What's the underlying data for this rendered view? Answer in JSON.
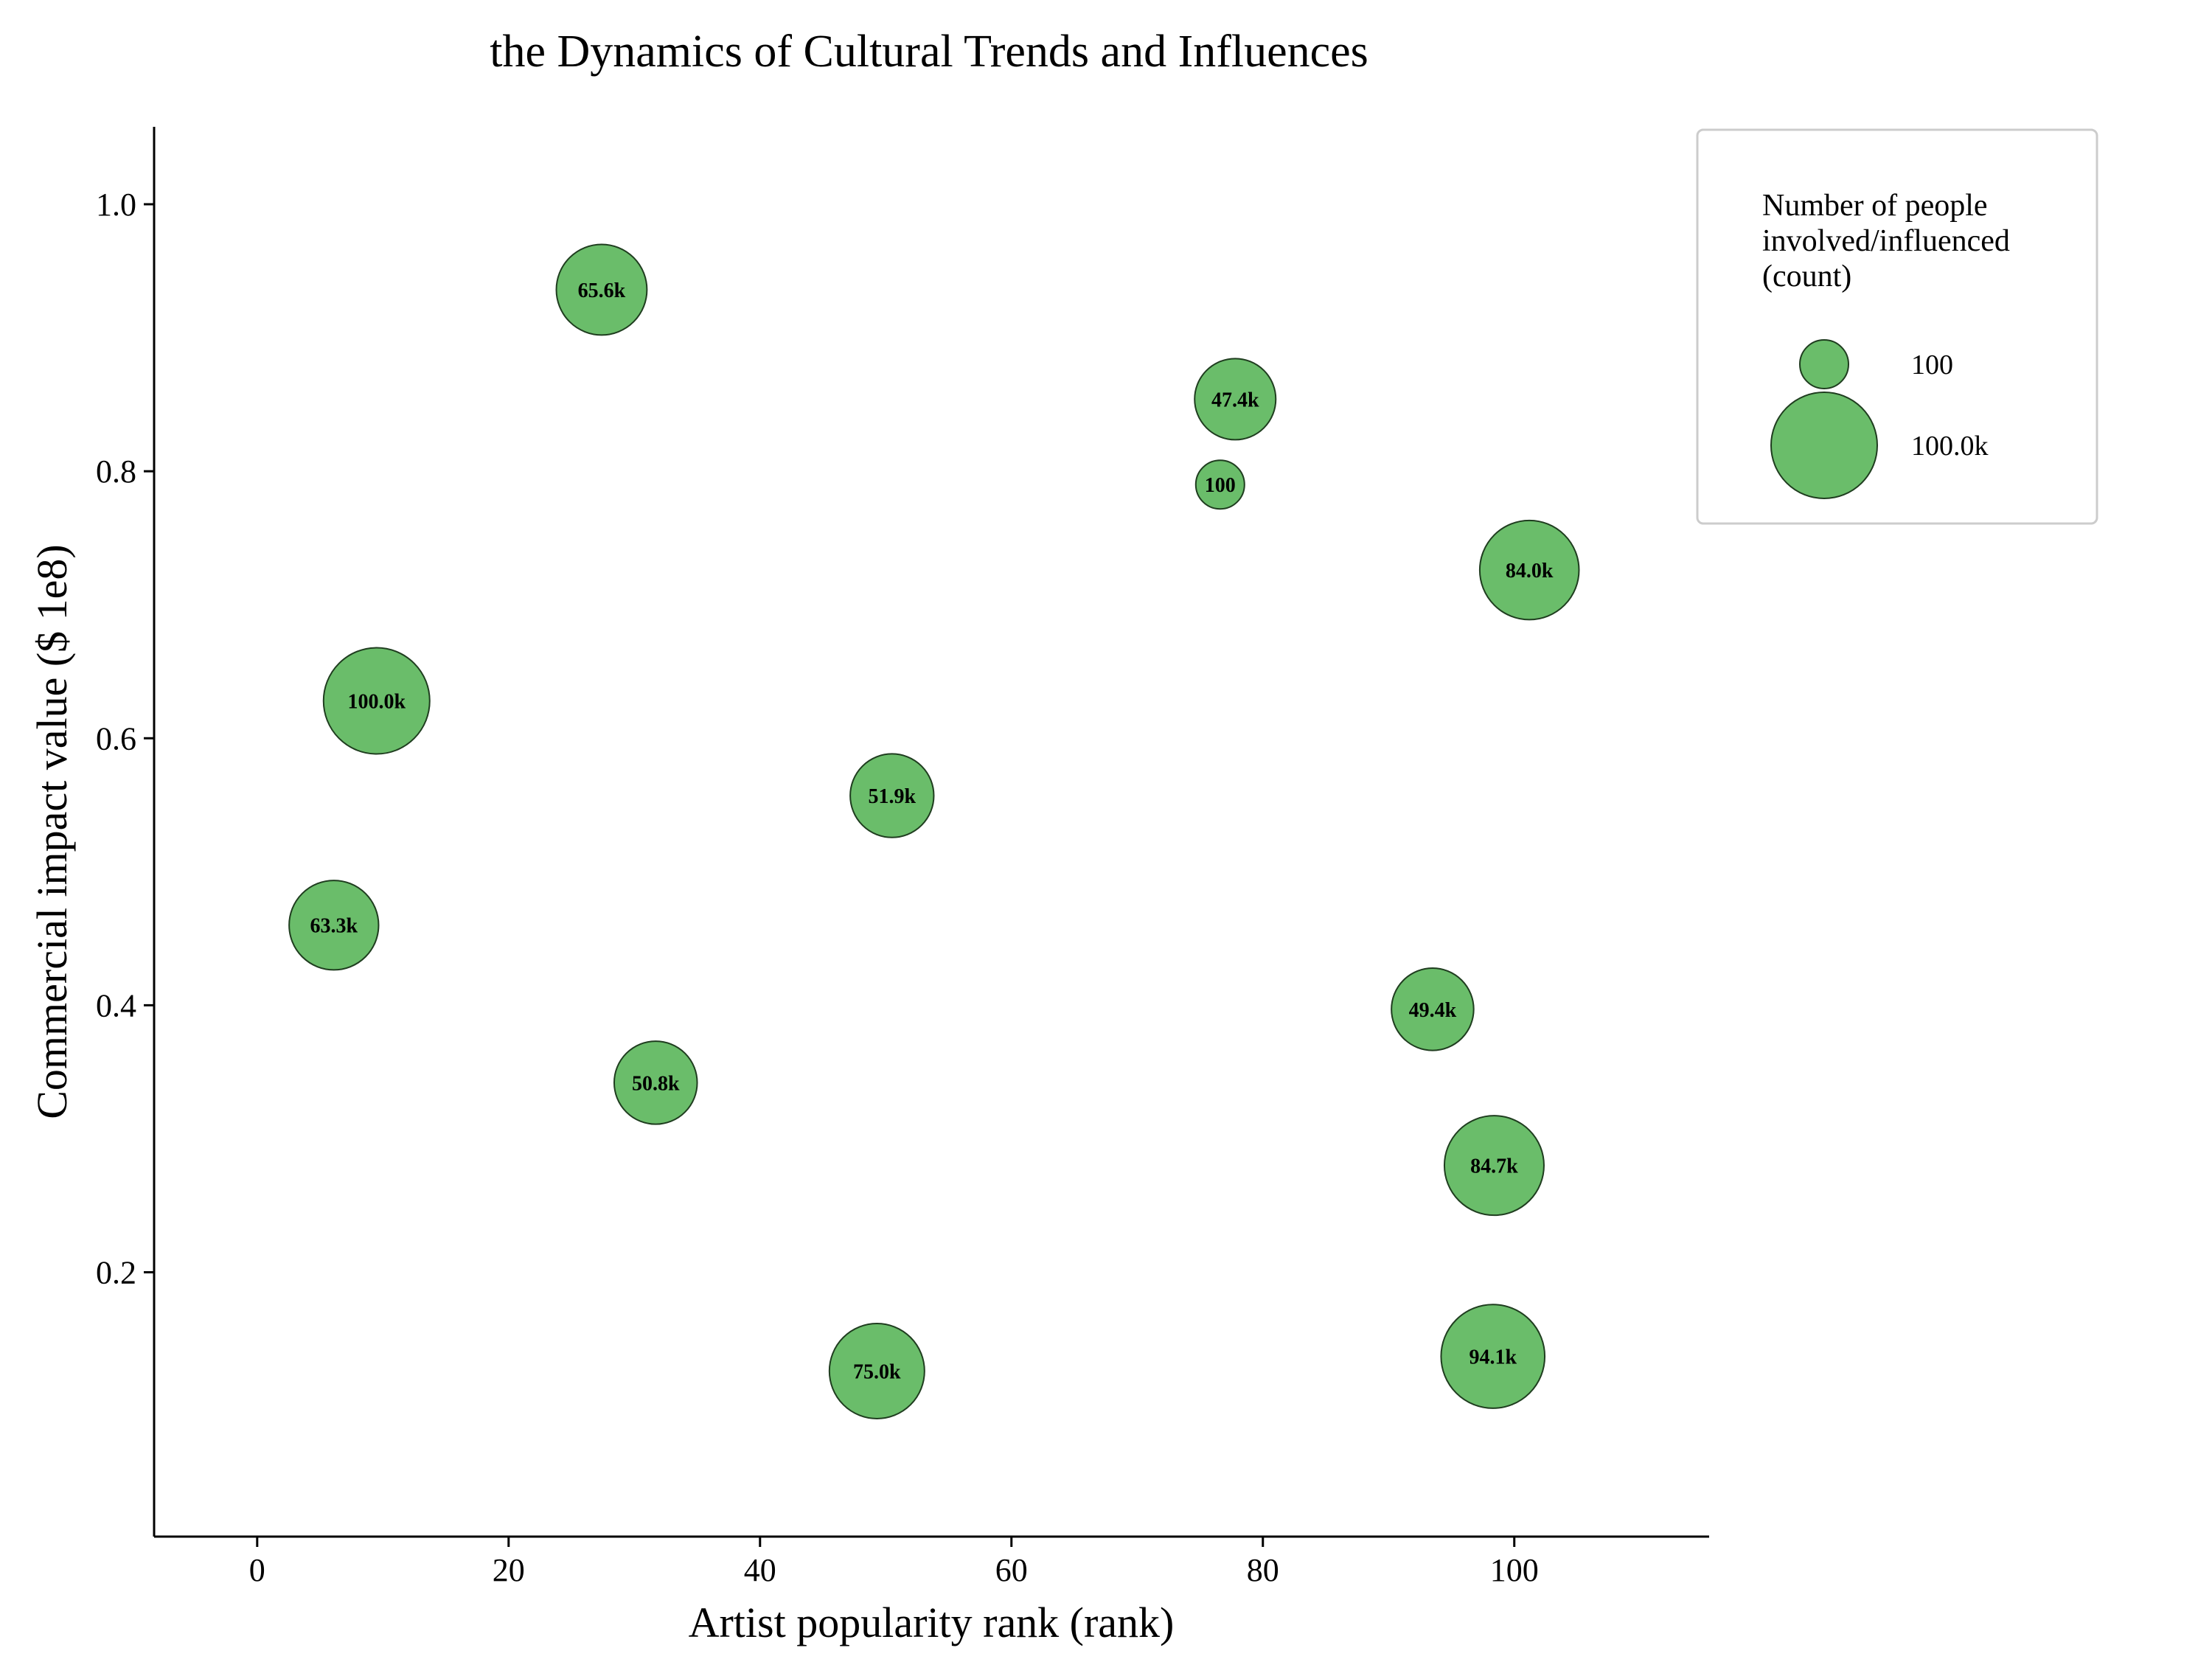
{
  "chart_data": {
    "type": "scatter",
    "title": "the Dynamics of Cultural Trends and Influences",
    "xlabel": "Artist popularity rank (rank)",
    "ylabel": "Commercial impact value ($ 1e8)",
    "xlim": [
      -8.2,
      115.5
    ],
    "ylim": [
      0.002,
      1.058
    ],
    "xticks": [
      0,
      20,
      40,
      60,
      80,
      100
    ],
    "yticks": [
      0.2,
      0.4,
      0.6,
      0.8,
      1.0
    ],
    "xtick_labels": [
      "0",
      "20",
      "40",
      "60",
      "80",
      "100"
    ],
    "ytick_labels": [
      "0.2",
      "0.4",
      "0.6",
      "0.8",
      "1.0"
    ],
    "grid": false,
    "color": "#6abd6a",
    "edge_color": "#1f3d1f",
    "size_field": "Number of people involved/influenced (count)",
    "points": [
      {
        "x": 27.4,
        "y": 0.936,
        "size": 65600,
        "label": "65.6k"
      },
      {
        "x": 77.8,
        "y": 0.854,
        "size": 47400,
        "label": "47.4k"
      },
      {
        "x": 76.6,
        "y": 0.79,
        "size": 100,
        "label": "100"
      },
      {
        "x": 101.2,
        "y": 0.726,
        "size": 84000,
        "label": "84.0k"
      },
      {
        "x": 9.5,
        "y": 0.628,
        "size": 100000,
        "label": "100.0k"
      },
      {
        "x": 50.5,
        "y": 0.557,
        "size": 51900,
        "label": "51.9k"
      },
      {
        "x": 6.1,
        "y": 0.46,
        "size": 63300,
        "label": "63.3k"
      },
      {
        "x": 93.5,
        "y": 0.397,
        "size": 49400,
        "label": "49.4k"
      },
      {
        "x": 31.7,
        "y": 0.342,
        "size": 50800,
        "label": "50.8k"
      },
      {
        "x": 98.4,
        "y": 0.28,
        "size": 84700,
        "label": "84.7k"
      },
      {
        "x": 98.3,
        "y": 0.137,
        "size": 94100,
        "label": "94.1k"
      },
      {
        "x": 49.3,
        "y": 0.126,
        "size": 75000,
        "label": "75.0k"
      }
    ],
    "legend": {
      "position": "top-right",
      "title_lines": [
        "Number of people",
        "involved/influenced",
        "(count)"
      ],
      "entries": [
        {
          "size": 100,
          "label": "100"
        },
        {
          "size": 100000,
          "label": "100.0k"
        }
      ]
    }
  }
}
